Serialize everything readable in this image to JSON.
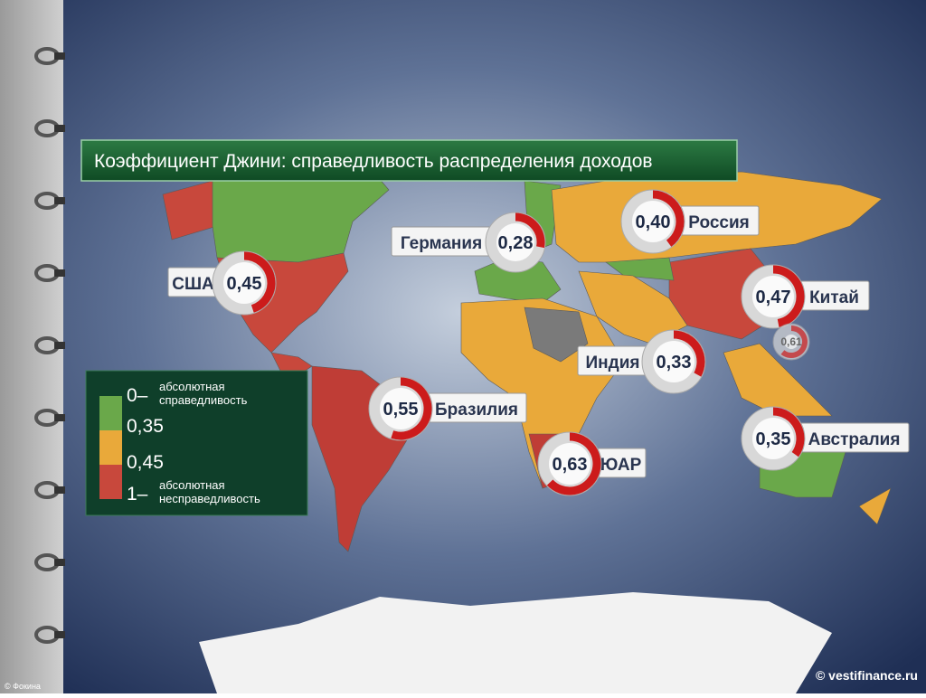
{
  "title": "Коэффициент Джини: справедливость распределения доходов",
  "legend": {
    "items": [
      {
        "mark": "0–",
        "text": [
          "абсолютная",
          "справедливость"
        ]
      },
      {
        "mark": "0,35"
      },
      {
        "mark": "0,45"
      },
      {
        "mark": "1–",
        "text": [
          "абсолютная",
          "несправедливость"
        ]
      }
    ]
  },
  "markers": [
    {
      "name": "США",
      "value": 0.45,
      "value_label": "0,45"
    },
    {
      "name": "Германия",
      "value": 0.28,
      "value_label": "0,28"
    },
    {
      "name": "Россия",
      "value": 0.4,
      "value_label": "0,40"
    },
    {
      "name": "Китай",
      "value": 0.47,
      "value_label": "0,47"
    },
    {
      "value": 0.61,
      "value_label": "0,61"
    },
    {
      "name": "Индия",
      "value": 0.33,
      "value_label": "0,33"
    },
    {
      "name": "Бразилия",
      "value": 0.55,
      "value_label": "0,55"
    },
    {
      "name": "ЮАР",
      "value": 0.63,
      "value_label": "0,63"
    },
    {
      "name": "Австралия",
      "value": 0.35,
      "value_label": "0,35"
    }
  ],
  "credits": {
    "source": "© vestifinance.ru",
    "author": "© Фокина"
  }
}
